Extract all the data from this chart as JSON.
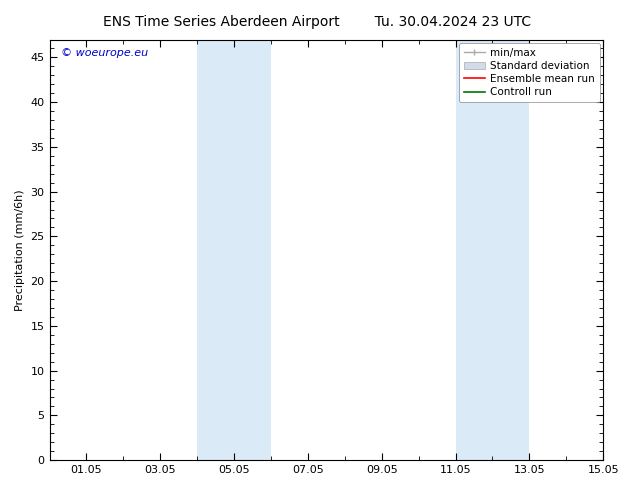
{
  "title_left": "ENS Time Series Aberdeen Airport",
  "title_right": "Tu. 30.04.2024 23 UTC",
  "ylabel": "Precipitation (mm/6h)",
  "ylim": [
    0,
    47
  ],
  "yticks": [
    0,
    5,
    10,
    15,
    20,
    25,
    30,
    35,
    40,
    45
  ],
  "xlim": [
    0,
    15
  ],
  "xtick_labels": [
    "01.05",
    "03.05",
    "05.05",
    "07.05",
    "09.05",
    "11.05",
    "13.05",
    "15.05"
  ],
  "xtick_positions": [
    1,
    3,
    5,
    7,
    9,
    11,
    13,
    15
  ],
  "shaded_regions": [
    {
      "x_start": 4.0,
      "x_end": 6.0,
      "color": "#dbeaf7"
    },
    {
      "x_start": 11.0,
      "x_end": 13.0,
      "color": "#dbeaf7"
    }
  ],
  "background_color": "#ffffff",
  "watermark_text": "© woeurope.eu",
  "watermark_color": "#0000cc",
  "minmax_color": "#aaaaaa",
  "std_color": "#ccddee",
  "ensemble_color": "#ff0000",
  "control_color": "#007700",
  "title_fontsize": 10,
  "label_fontsize": 8,
  "tick_fontsize": 8,
  "legend_fontsize": 7.5
}
